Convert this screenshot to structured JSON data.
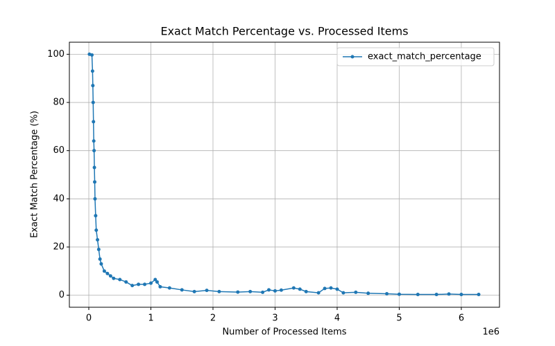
{
  "chart_data": {
    "type": "line",
    "title": "Exact Match Percentage vs. Processed Items",
    "x_label": "Number of Processed Items",
    "y_label": "Exact Match Percentage (%)",
    "x_offset_label": "1e6",
    "legend": "upper right",
    "grid": true,
    "xlim": [
      -313000,
      6615000
    ],
    "ylim": [
      -5,
      105
    ],
    "xticks": [
      {
        "value": 0,
        "label": "0"
      },
      {
        "value": 1000000,
        "label": "1"
      },
      {
        "value": 2000000,
        "label": "2"
      },
      {
        "value": 3000000,
        "label": "3"
      },
      {
        "value": 4000000,
        "label": "4"
      },
      {
        "value": 5000000,
        "label": "5"
      },
      {
        "value": 6000000,
        "label": "6"
      }
    ],
    "yticks": [
      0,
      20,
      40,
      60,
      80,
      100
    ],
    "x": [
      10000,
      50000,
      60000,
      65000,
      70000,
      75000,
      80000,
      85000,
      90000,
      95000,
      100000,
      110000,
      120000,
      140000,
      160000,
      180000,
      200000,
      250000,
      300000,
      350000,
      400000,
      500000,
      600000,
      700000,
      800000,
      900000,
      1000000,
      1070000,
      1100000,
      1150000,
      1300000,
      1500000,
      1700000,
      1900000,
      2100000,
      2400000,
      2600000,
      2800000,
      2900000,
      3000000,
      3100000,
      3300000,
      3400000,
      3500000,
      3700000,
      3800000,
      3900000,
      4000000,
      4100000,
      4300000,
      4500000,
      4800000,
      5000000,
      5300000,
      5600000,
      5800000,
      6000000,
      6280000
    ],
    "series": [
      {
        "name": "exact_match_percentage",
        "color": "#1f77b4",
        "values": [
          100,
          99.7,
          93,
          87,
          80,
          72,
          64,
          60,
          53,
          47,
          40,
          33,
          27,
          23,
          19,
          15,
          13,
          10,
          9,
          8,
          7,
          6.5,
          5.5,
          4,
          4.5,
          4.5,
          5,
          6.5,
          5.5,
          3.5,
          3,
          2.2,
          1.5,
          2,
          1.5,
          1.3,
          1.5,
          1.2,
          2.2,
          1.8,
          2.1,
          3,
          2.5,
          1.5,
          1,
          2.8,
          3,
          2.5,
          1,
          1.2,
          0.8,
          0.6,
          0.4,
          0.3,
          0.3,
          0.5,
          0.3,
          0.3
        ]
      }
    ]
  }
}
